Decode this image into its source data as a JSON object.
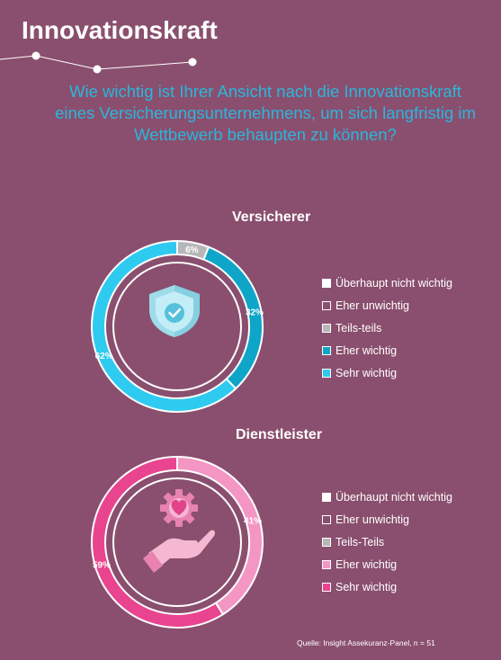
{
  "header": {
    "title": "Innovationskraft"
  },
  "question": "Wie wichtig ist Ihrer Ansicht nach die Innovationskraft eines Versicherungsunternehmens, um sich langfristig im Wettbewerb behaupten zu können?",
  "source": "Quelle: Insight Assekuranz-Panel, n = 51",
  "icons": {
    "chart1": "shield-check-icon",
    "chart2": "hand-heart-gear-icon"
  },
  "chart_data": [
    {
      "type": "pie",
      "title": "Versicherer",
      "categories": [
        "Überhaupt nicht wichtig",
        "Eher unwichtig",
        "Teils-teils",
        "Eher wichtig",
        "Sehr wichtig"
      ],
      "values": [
        0,
        0,
        6,
        32,
        62
      ],
      "data_labels": [
        "",
        "",
        "6%",
        "32%",
        "62%"
      ],
      "colors": [
        "#ffffff",
        "#8a4f6e",
        "#b7b7b7",
        "#0ea5c9",
        "#2fcaf0"
      ],
      "legend_position": "right"
    },
    {
      "type": "pie",
      "title": "Dienstleister",
      "categories": [
        "Überhaupt nicht wichtig",
        "Eher unwichtig",
        "Teils-Teils",
        "Eher wichtig",
        "Sehr wichtig"
      ],
      "values": [
        0,
        0,
        0,
        41,
        59
      ],
      "data_labels": [
        "",
        "",
        "",
        "41%",
        "59%"
      ],
      "colors": [
        "#ffffff",
        "#8a4f6e",
        "#b7b7b7",
        "#f496c4",
        "#e9448f"
      ],
      "legend_position": "right"
    }
  ]
}
